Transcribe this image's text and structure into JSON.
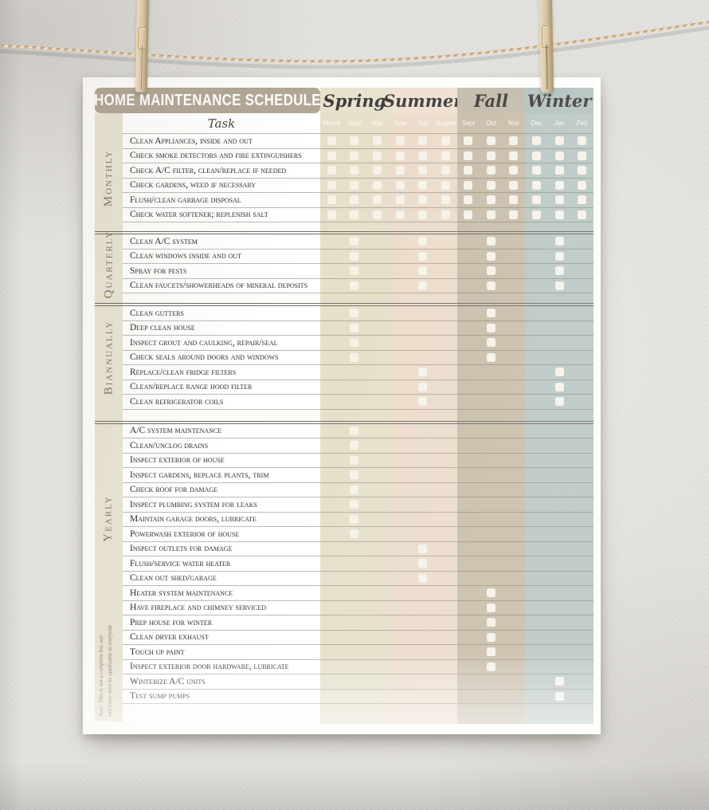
{
  "poster": {
    "title": "HOME MAINTENANCE SCHEDULE",
    "task_header": "Task",
    "note_line1": "Note: This is not a complete list, nor",
    "note_line2": "will every item be applicable to everyone",
    "title_bar_color": "#b2a795",
    "checkbox_color": "#f6f2e8",
    "label_column_color": "#e9e4d3",
    "seasons": [
      {
        "name": "Spring",
        "months": [
          "March",
          "April",
          "May"
        ],
        "header_color": "#e8e2cd",
        "band_color": "#e5dfc9"
      },
      {
        "name": "Summer",
        "months": [
          "June",
          "July",
          "August"
        ],
        "header_color": "#efe0d2",
        "band_color": "#ebdbca"
      },
      {
        "name": "Fall",
        "months": [
          "Sept",
          "Oct",
          "Nov"
        ],
        "header_color": "#c3bbaa",
        "band_color": "#c8bda9"
      },
      {
        "name": "Winter",
        "months": [
          "Dec",
          "Jan",
          "Feb"
        ],
        "header_color": "#b2c1bf",
        "band_color": "#bac7c3"
      }
    ],
    "sections": [
      {
        "label": "Monthly",
        "tasks": [
          {
            "text": "Clean Appliances, inside and out",
            "checks": [
              0,
              1,
              2,
              3,
              4,
              5,
              6,
              7,
              8,
              9,
              10,
              11
            ]
          },
          {
            "text": "Check smoke detectors and fire extinguishers",
            "checks": [
              0,
              1,
              2,
              3,
              4,
              5,
              6,
              7,
              8,
              9,
              10,
              11
            ]
          },
          {
            "text": "Check A/C filter, clean/replace if needed",
            "checks": [
              0,
              1,
              2,
              3,
              4,
              5,
              6,
              7,
              8,
              9,
              10,
              11
            ]
          },
          {
            "text": "Check gardens, weed if necessary",
            "checks": [
              0,
              1,
              2,
              3,
              4,
              5,
              6,
              7,
              8,
              9,
              10,
              11
            ]
          },
          {
            "text": "Flush/clean garbage disposal",
            "checks": [
              0,
              1,
              2,
              3,
              4,
              5,
              6,
              7,
              8,
              9,
              10,
              11
            ]
          },
          {
            "text": "Check water softener; replenish salt",
            "checks": [
              0,
              1,
              2,
              3,
              4,
              5,
              6,
              7,
              8,
              9,
              10,
              11
            ]
          }
        ]
      },
      {
        "label": "Quarterly",
        "tasks": [
          {
            "text": "Clean A/C system",
            "checks": [
              1,
              4,
              7,
              10
            ]
          },
          {
            "text": "Clean windows inside and out",
            "checks": [
              1,
              4,
              7,
              10
            ]
          },
          {
            "text": "Spray for pests",
            "checks": [
              1,
              4,
              7,
              10
            ]
          },
          {
            "text": "Clean faucets/showerheads of mineral deposits",
            "checks": [
              1,
              4,
              7,
              10
            ]
          }
        ]
      },
      {
        "label": "Biannually",
        "tasks": [
          {
            "text": "Clean gutters",
            "checks": [
              1,
              7
            ]
          },
          {
            "text": "Deep clean house",
            "checks": [
              1,
              7
            ]
          },
          {
            "text": "Inspect grout and caulking, repair/seal",
            "checks": [
              1,
              7
            ]
          },
          {
            "text": "Check seals around doors and windows",
            "checks": [
              1,
              7
            ]
          },
          {
            "text": "Replace/clean fridge filters",
            "checks": [
              4,
              10
            ]
          },
          {
            "text": "Clean/replace range hood filter",
            "checks": [
              4,
              10
            ]
          },
          {
            "text": "Clean refrigerator coils",
            "checks": [
              4,
              10
            ]
          }
        ]
      },
      {
        "label": "Yearly",
        "tasks": [
          {
            "text": "A/C system maintenance",
            "checks": [
              1
            ]
          },
          {
            "text": "Clean/unclog drains",
            "checks": [
              1
            ]
          },
          {
            "text": "Inspect exterior of house",
            "checks": [
              1
            ]
          },
          {
            "text": "Inspect gardens, replace plants, trim",
            "checks": [
              1
            ]
          },
          {
            "text": "Check roof for damage",
            "checks": [
              1
            ]
          },
          {
            "text": "Inspect plumbing system for leaks",
            "checks": [
              1
            ]
          },
          {
            "text": "Maintain garage doors, lubricate",
            "checks": [
              1
            ]
          },
          {
            "text": "Powerwash exterior of house",
            "checks": [
              1
            ]
          },
          {
            "text": "Inspect outlets for damage",
            "checks": [
              4
            ]
          },
          {
            "text": "Flush/service water heater",
            "checks": [
              4
            ]
          },
          {
            "text": "Clean out shed/garage",
            "checks": [
              4
            ]
          },
          {
            "text": "Heater system maintenance",
            "checks": [
              7
            ]
          },
          {
            "text": "Have fireplace and chimney serviced",
            "checks": [
              7
            ]
          },
          {
            "text": "Prep house for winter",
            "checks": [
              7
            ]
          },
          {
            "text": "Clean dryer exhaust",
            "checks": [
              7
            ]
          },
          {
            "text": "Touch up paint",
            "checks": [
              7
            ]
          },
          {
            "text": "Inspect exterior door hardware, lubricate",
            "checks": [
              7
            ]
          },
          {
            "text": "Winterize A/C units",
            "checks": [
              10
            ]
          },
          {
            "text": "Test sump pumps",
            "checks": [
              10
            ]
          }
        ]
      }
    ]
  }
}
